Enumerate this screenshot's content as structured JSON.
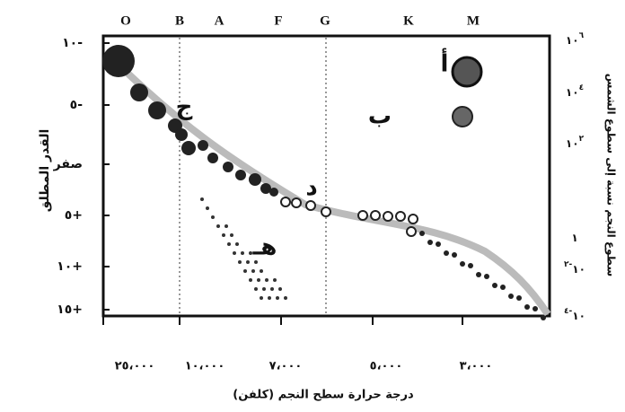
{
  "diagram": {
    "spectral_classes": [
      "O",
      "B",
      "A",
      "F",
      "G",
      "K",
      "M"
    ],
    "left_axis": {
      "title": "القدر المطلق",
      "labels": [
        "١٠-",
        "٥-",
        "صفر",
        "٥+",
        "١٠+",
        "١٥+"
      ]
    },
    "right_axis": {
      "title": "سطوع النجم نسبة إلى سطوع الشمس",
      "labels": [
        {
          "base": "١٠",
          "exp": "٦"
        },
        {
          "base": "١٠",
          "exp": "٤"
        },
        {
          "base": "١٠",
          "exp": "٢"
        },
        {
          "base": "١"
        },
        {
          "base": "١٠",
          "exp": "-٢"
        },
        {
          "base": "١٠",
          "exp": "-٤"
        }
      ]
    },
    "bottom_axis": {
      "title": "درجة حرارة سطح النجم (كلفن)",
      "labels": [
        "٢٥،٠٠٠",
        "١٠،٠٠٠",
        "٧،٠٠٠",
        "٥،٠٠٠",
        "٣،٠٠٠"
      ]
    },
    "markers": [
      "أ",
      "ب",
      "ج",
      "د",
      "هـ"
    ]
  }
}
